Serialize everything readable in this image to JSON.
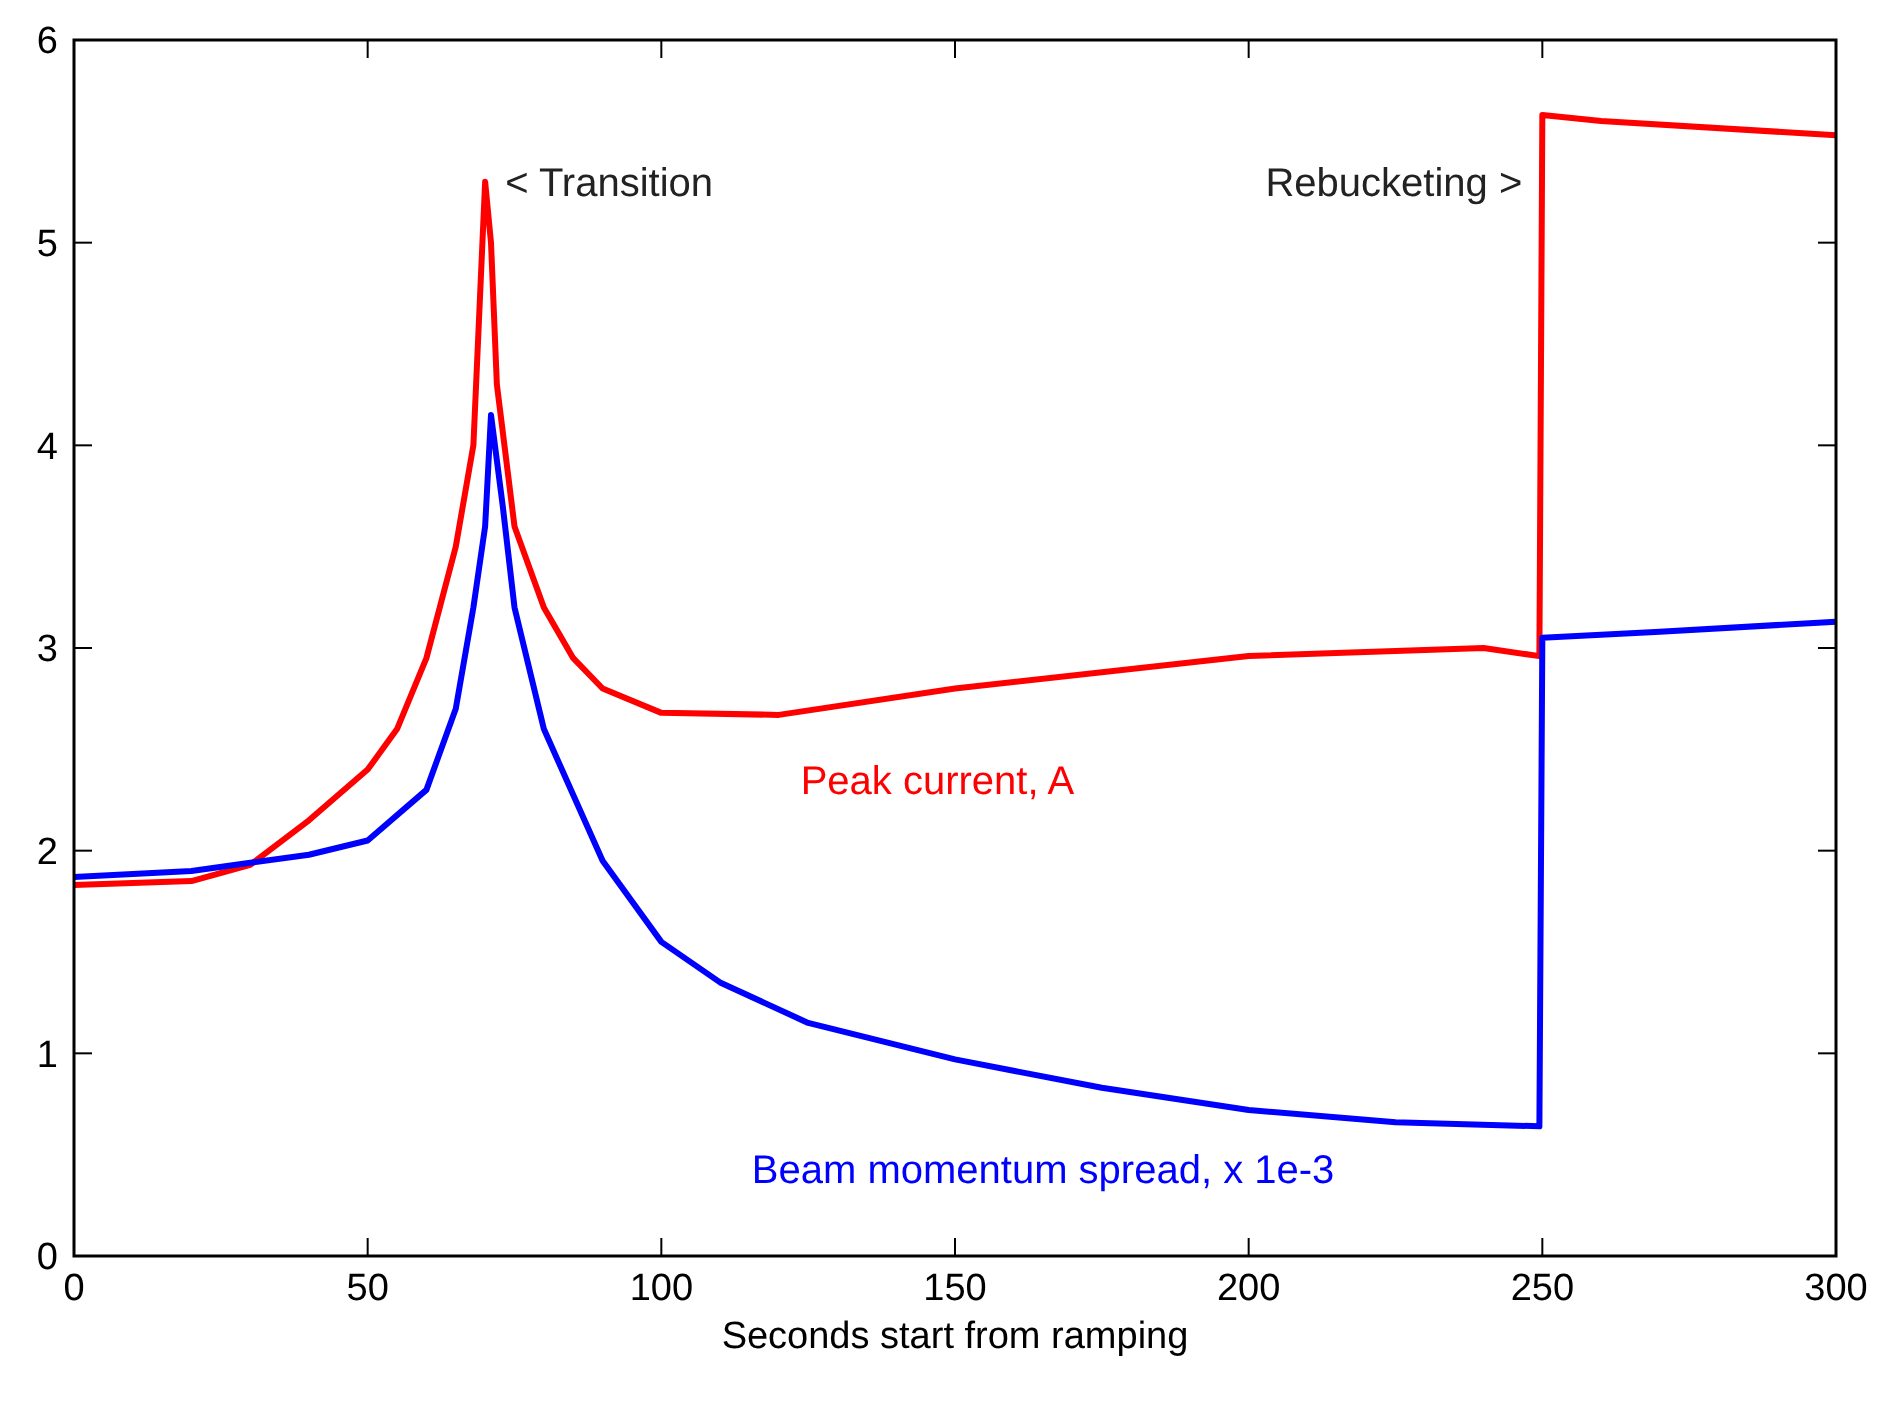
{
  "chart_data": {
    "type": "line",
    "xlabel": "Seconds start from ramping",
    "xlim": [
      0,
      300
    ],
    "xticks": [
      0,
      50,
      100,
      150,
      200,
      250,
      300
    ],
    "ylim": [
      0,
      6
    ],
    "yticks": [
      0,
      1,
      2,
      3,
      4,
      5,
      6
    ],
    "grid": false,
    "marker": "none",
    "line_style": "solid",
    "series": [
      {
        "name": "Peak current, A",
        "color": "#ff0000",
        "x": [
          0,
          20,
          30,
          40,
          50,
          55,
          60,
          65,
          68,
          70,
          71,
          72,
          75,
          80,
          85,
          90,
          100,
          120,
          150,
          200,
          240,
          249.5,
          250,
          260,
          300
        ],
        "values": [
          1.83,
          1.85,
          1.93,
          2.15,
          2.4,
          2.6,
          2.95,
          3.5,
          4.0,
          5.3,
          5.0,
          4.3,
          3.6,
          3.2,
          2.95,
          2.8,
          2.68,
          2.67,
          2.8,
          2.96,
          3.0,
          2.96,
          5.63,
          5.6,
          5.53
        ]
      },
      {
        "name": "Beam momentum spread, x 1e-3",
        "color": "#0000ff",
        "x": [
          0,
          20,
          30,
          40,
          50,
          60,
          65,
          68,
          70,
          71,
          73,
          75,
          80,
          90,
          100,
          110,
          125,
          150,
          175,
          200,
          225,
          249.5,
          250,
          270,
          300
        ],
        "values": [
          1.87,
          1.9,
          1.94,
          1.98,
          2.05,
          2.3,
          2.7,
          3.2,
          3.6,
          4.15,
          3.7,
          3.2,
          2.6,
          1.95,
          1.55,
          1.35,
          1.15,
          0.97,
          0.83,
          0.72,
          0.66,
          0.64,
          3.05,
          3.08,
          3.13
        ]
      }
    ],
    "annotations": [
      {
        "text": "< Transition",
        "x": 70,
        "y": 5.3
      },
      {
        "text": "Rebucketing >",
        "x": 250,
        "y": 5.3
      }
    ]
  }
}
